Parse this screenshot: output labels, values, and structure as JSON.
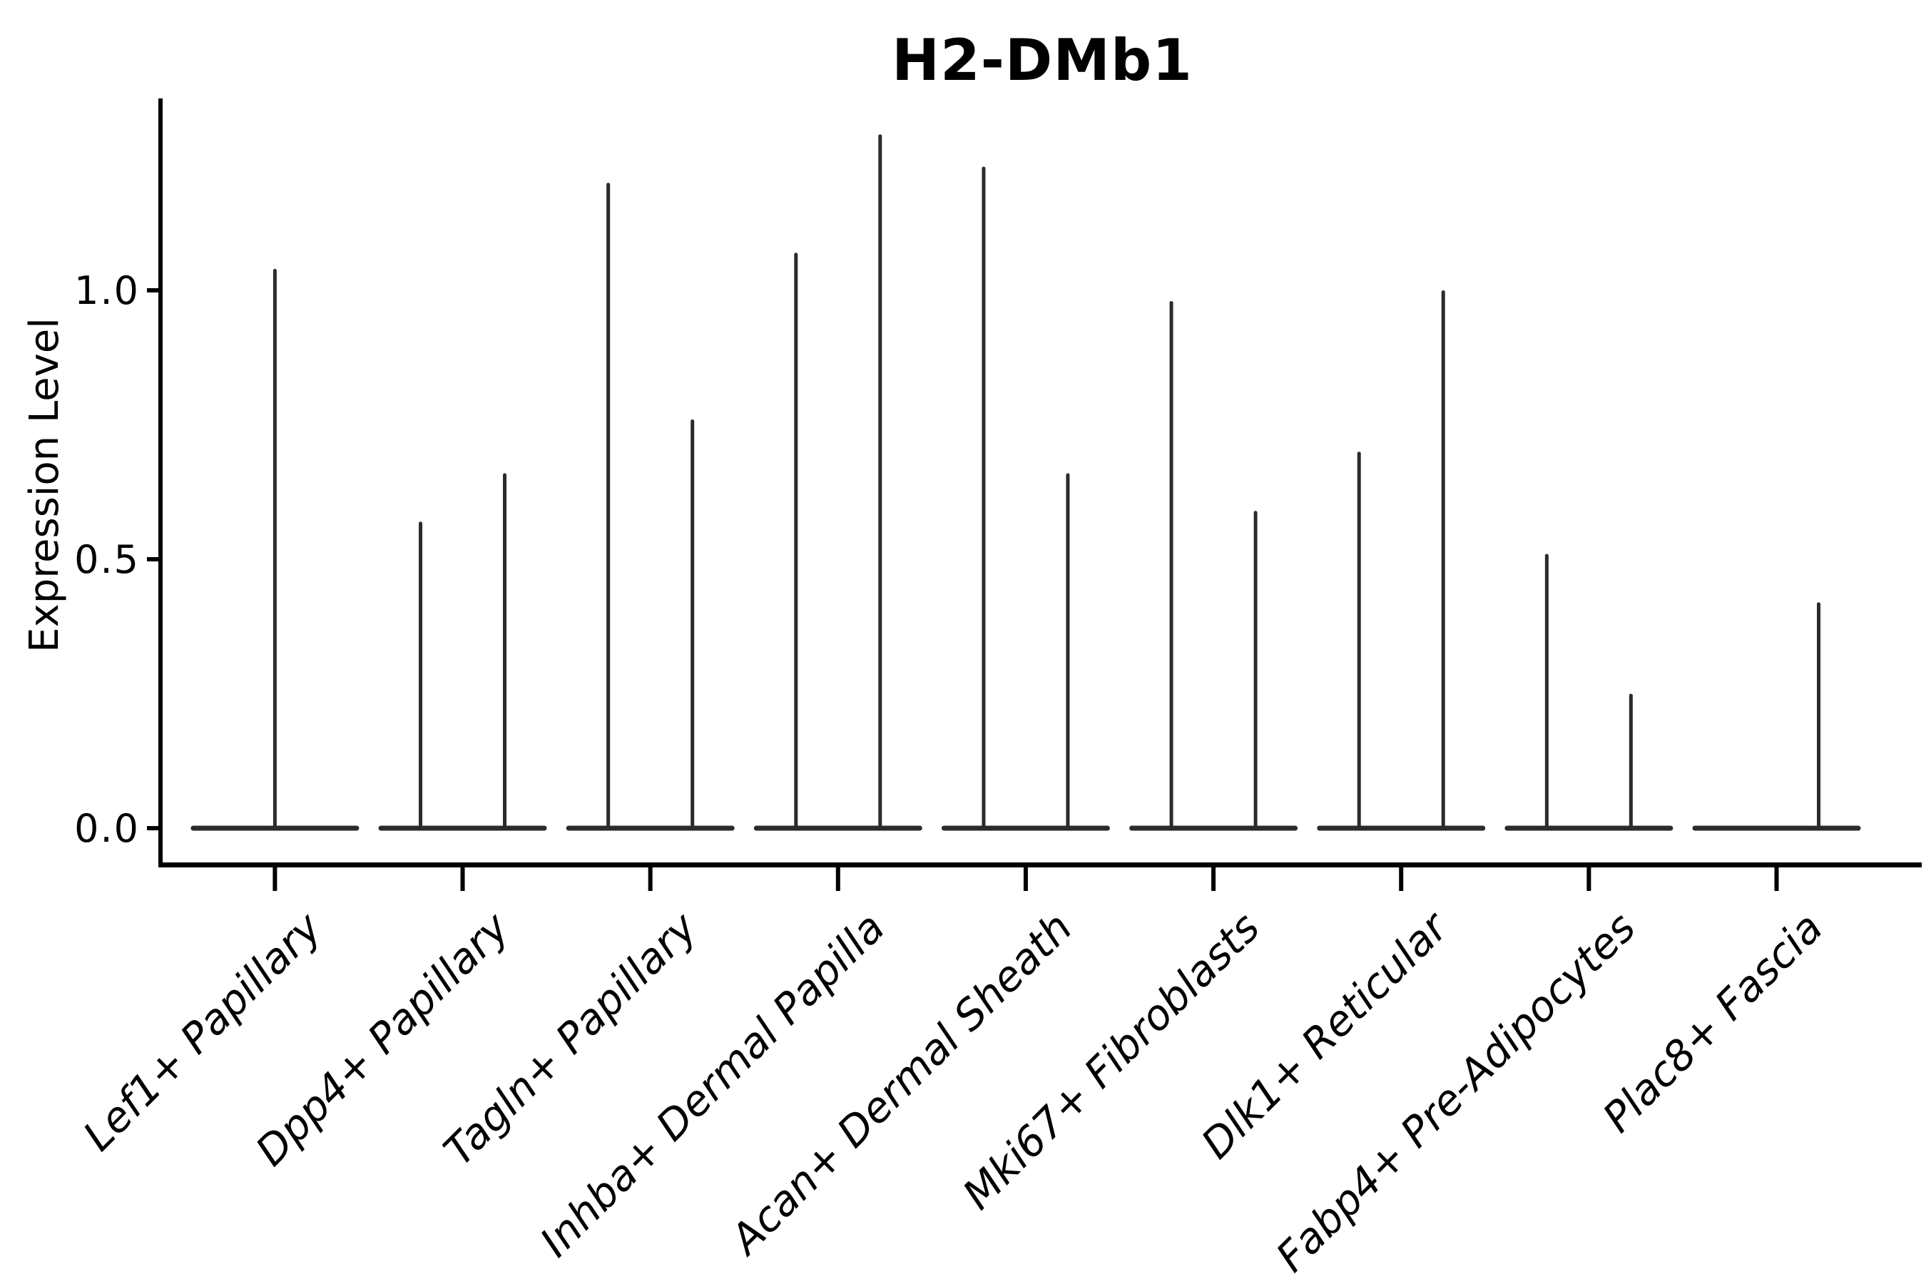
{
  "figure": {
    "background": "#ffffff"
  },
  "chart_data": {
    "type": "violin",
    "title": "H2-DMb1",
    "xlabel": "",
    "ylabel": "Expression Level",
    "ylim": [
      0,
      1.35
    ],
    "grid": false,
    "legend": "none",
    "y_ticks": [
      {
        "label": "0.0",
        "value": 0.0
      },
      {
        "label": "0.5",
        "value": 0.5
      },
      {
        "label": "1.0",
        "value": 1.0
      }
    ],
    "categories": [
      "Lef1+ Papillary",
      "Dpp4+ Papillary",
      "Tagln+ Papillary",
      "Inhba+ Dermal Papilla",
      "Acan+ Dermal Sheath",
      "Mki67+ Fibroblasts",
      "Dlk1+ Reticular",
      "Fabp4+ Pre-Adipocytes",
      "Plac8+ Fascia"
    ],
    "note": "Violins are collapsed flat at expression 0 with thin density spikes rising to the maximum expression value; most categories contain two side-by-side violins (slot -1 = left, 1 = right, 0 = centered single violin).",
    "violins": [
      {
        "category": "Lef1+ Papillary",
        "spikes": [
          {
            "slot": 0,
            "max": 1.04
          }
        ]
      },
      {
        "category": "Dpp4+ Papillary",
        "spikes": [
          {
            "slot": -1,
            "max": 0.57
          },
          {
            "slot": 1,
            "max": 0.66
          }
        ]
      },
      {
        "category": "Tagln+ Papillary",
        "spikes": [
          {
            "slot": -1,
            "max": 1.2
          },
          {
            "slot": 1,
            "max": 0.76
          }
        ]
      },
      {
        "category": "Inhba+ Dermal Papilla",
        "spikes": [
          {
            "slot": -1,
            "max": 1.07
          },
          {
            "slot": 1,
            "max": 1.29
          }
        ]
      },
      {
        "category": "Acan+ Dermal Sheath",
        "spikes": [
          {
            "slot": -1,
            "max": 1.23
          },
          {
            "slot": 1,
            "max": 0.66
          }
        ]
      },
      {
        "category": "Mki67+ Fibroblasts",
        "spikes": [
          {
            "slot": -1,
            "max": 0.98
          },
          {
            "slot": 1,
            "max": 0.59
          }
        ]
      },
      {
        "category": "Dlk1+ Reticular",
        "spikes": [
          {
            "slot": -1,
            "max": 0.7
          },
          {
            "slot": 1,
            "max": 1.0
          }
        ]
      },
      {
        "category": "Fabp4+ Pre-Adipocytes",
        "spikes": [
          {
            "slot": -1,
            "max": 0.51
          },
          {
            "slot": 1,
            "max": 0.25
          }
        ]
      },
      {
        "category": "Plac8+ Fascia",
        "spikes": [
          {
            "slot": 1,
            "max": 0.42
          }
        ]
      }
    ],
    "line_color": "#2b2b2b",
    "axis_color": "#000000",
    "text_color": "#000000"
  }
}
